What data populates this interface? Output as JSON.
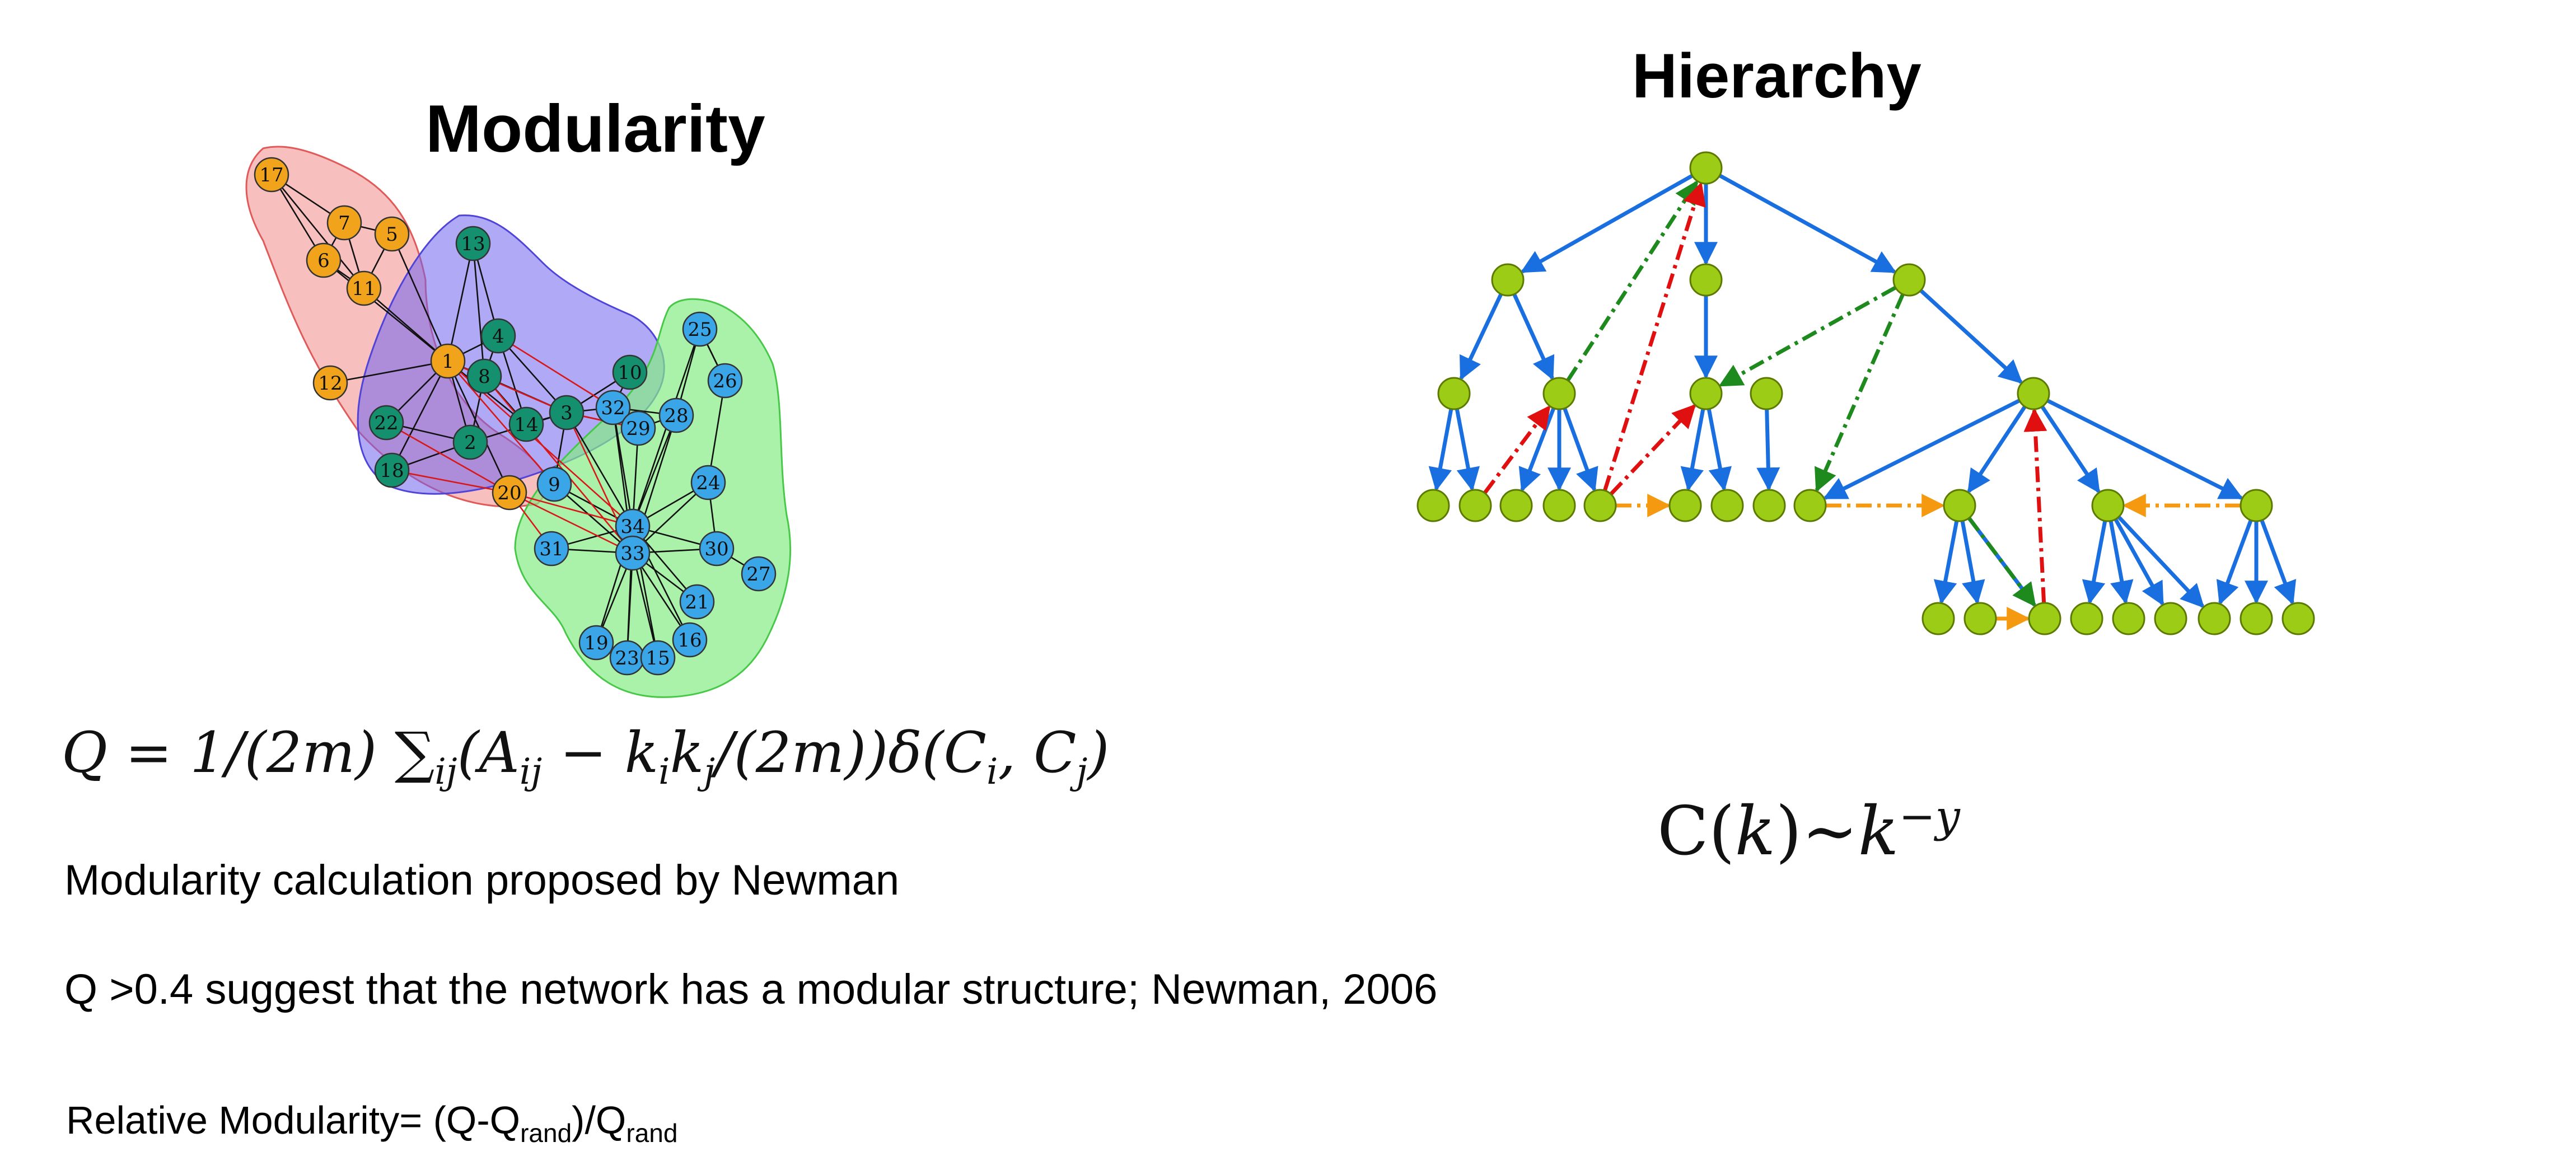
{
  "modularity": {
    "title": "Modularity",
    "formula": {
      "lhs": "Q = 1/(2m) ",
      "sum": "∑",
      "sum_sub": "ij",
      "body_a": "(A",
      "a_sub": "ij",
      "body_b": " − k",
      "ki_sub": "i",
      "body_c": "k",
      "kj_sub": "j",
      "body_d": "/(2m))δ(C",
      "ci_sub": "i",
      "body_e": ", C",
      "cj_sub": "j",
      "body_f": ")"
    },
    "caption_1": "Modularity calculation proposed by Newman",
    "caption_2": "Q >0.4 suggest that the network has a modular structure; Newman, 2006",
    "relative": {
      "prefix": "Relative Modularity= (Q-Q",
      "sub1": "rand",
      "middle": ")/Q",
      "sub2": "rand"
    },
    "network": {
      "colors": {
        "group_a_fill": "#f2a31c",
        "group_b_fill": "#15906e",
        "group_c_fill": "#3aa6e8",
        "hull_red": "#f28a8a",
        "hull_blue": "#7b6ff0",
        "hull_green": "#86ec86",
        "edge_black": "#111111",
        "edge_red": "#d81818"
      },
      "node_labels": [
        "17",
        "7",
        "5",
        "6",
        "11",
        "13",
        "4",
        "1",
        "8",
        "12",
        "22",
        "2",
        "14",
        "3",
        "10",
        "32",
        "29",
        "28",
        "25",
        "26",
        "18",
        "20",
        "9",
        "24",
        "34",
        "33",
        "31",
        "30",
        "27",
        "21",
        "19",
        "23",
        "15",
        "16"
      ]
    }
  },
  "hierarchy": {
    "title": "Hierarchy",
    "formula": {
      "lhs": "C(",
      "k": "k",
      "rel": ")∼",
      "k2": "k",
      "exponent": "−y"
    },
    "colors": {
      "node_fill": "#9ccc16",
      "node_stroke": "#5c7a00",
      "tree_edge": "#1a6fe0",
      "green_dash": "#1e8a1e",
      "red_dash": "#e01010",
      "orange_dash": "#f59a10"
    }
  }
}
